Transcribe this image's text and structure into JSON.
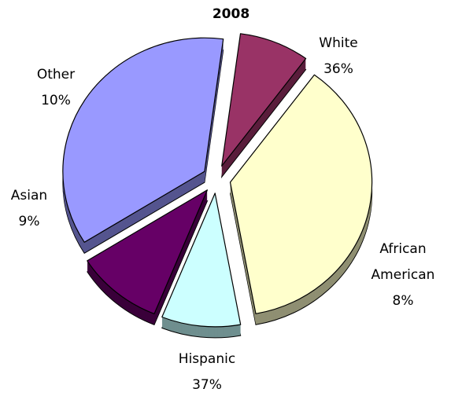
{
  "chart_data": {
    "type": "pie",
    "title": "2008",
    "categories": [
      "White",
      "African American",
      "Hispanic",
      "Asian",
      "Other"
    ],
    "values": [
      36,
      8,
      37,
      9,
      10
    ],
    "value_labels": [
      "36%",
      "8%",
      "37%",
      "9%",
      "10%"
    ],
    "label_lines": [
      [
        "White",
        "36%"
      ],
      [
        "African",
        "American",
        "8%"
      ],
      [
        "Hispanic",
        "37%"
      ],
      [
        "Asian",
        "9%"
      ],
      [
        "Other",
        "10%"
      ]
    ],
    "colors": [
      "#9999FF",
      "#993366",
      "#FFFFCC",
      "#CCFFFF",
      "#660066"
    ],
    "side_colors": [
      "#55558F",
      "#5A1E3C",
      "#8F8F72",
      "#6F8F8F",
      "#3A003A"
    ],
    "exploded": true,
    "three_d": true,
    "legend": "none"
  }
}
